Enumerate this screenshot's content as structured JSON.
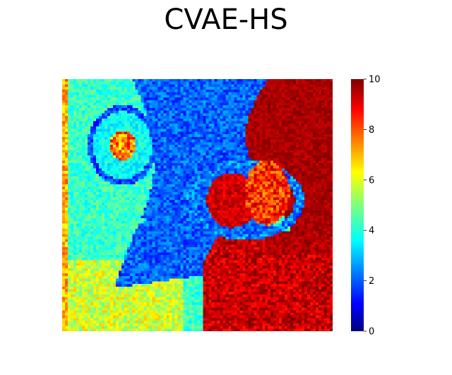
{
  "chart_data": {
    "type": "heatmap",
    "title": "CVAE-HS",
    "xlabel": "",
    "ylabel": "",
    "colormap": "jet",
    "value_range": [
      0,
      10
    ],
    "colorbar": {
      "ticks": [
        0,
        2,
        4,
        6,
        8,
        10
      ],
      "tick_labels": [
        "0",
        "2",
        "4",
        "6",
        "8",
        "10"
      ]
    },
    "grid_size": [
      96,
      96
    ],
    "regions": [
      {
        "name": "background-field",
        "approx_value": 4.3
      },
      {
        "name": "right-dark-red-region",
        "approx_value": 10
      },
      {
        "name": "lower-right-red-region",
        "approx_value": 9.3
      },
      {
        "name": "central-blue-region",
        "approx_value": 2.2
      },
      {
        "name": "inner-blob-left",
        "approx_value": 9.8
      },
      {
        "name": "inner-blob-right",
        "approx_value": 9.5
      },
      {
        "name": "upper-left-ring",
        "approx_value": 2.0
      },
      {
        "name": "lower-left-band",
        "approx_value": 5.8
      }
    ]
  }
}
